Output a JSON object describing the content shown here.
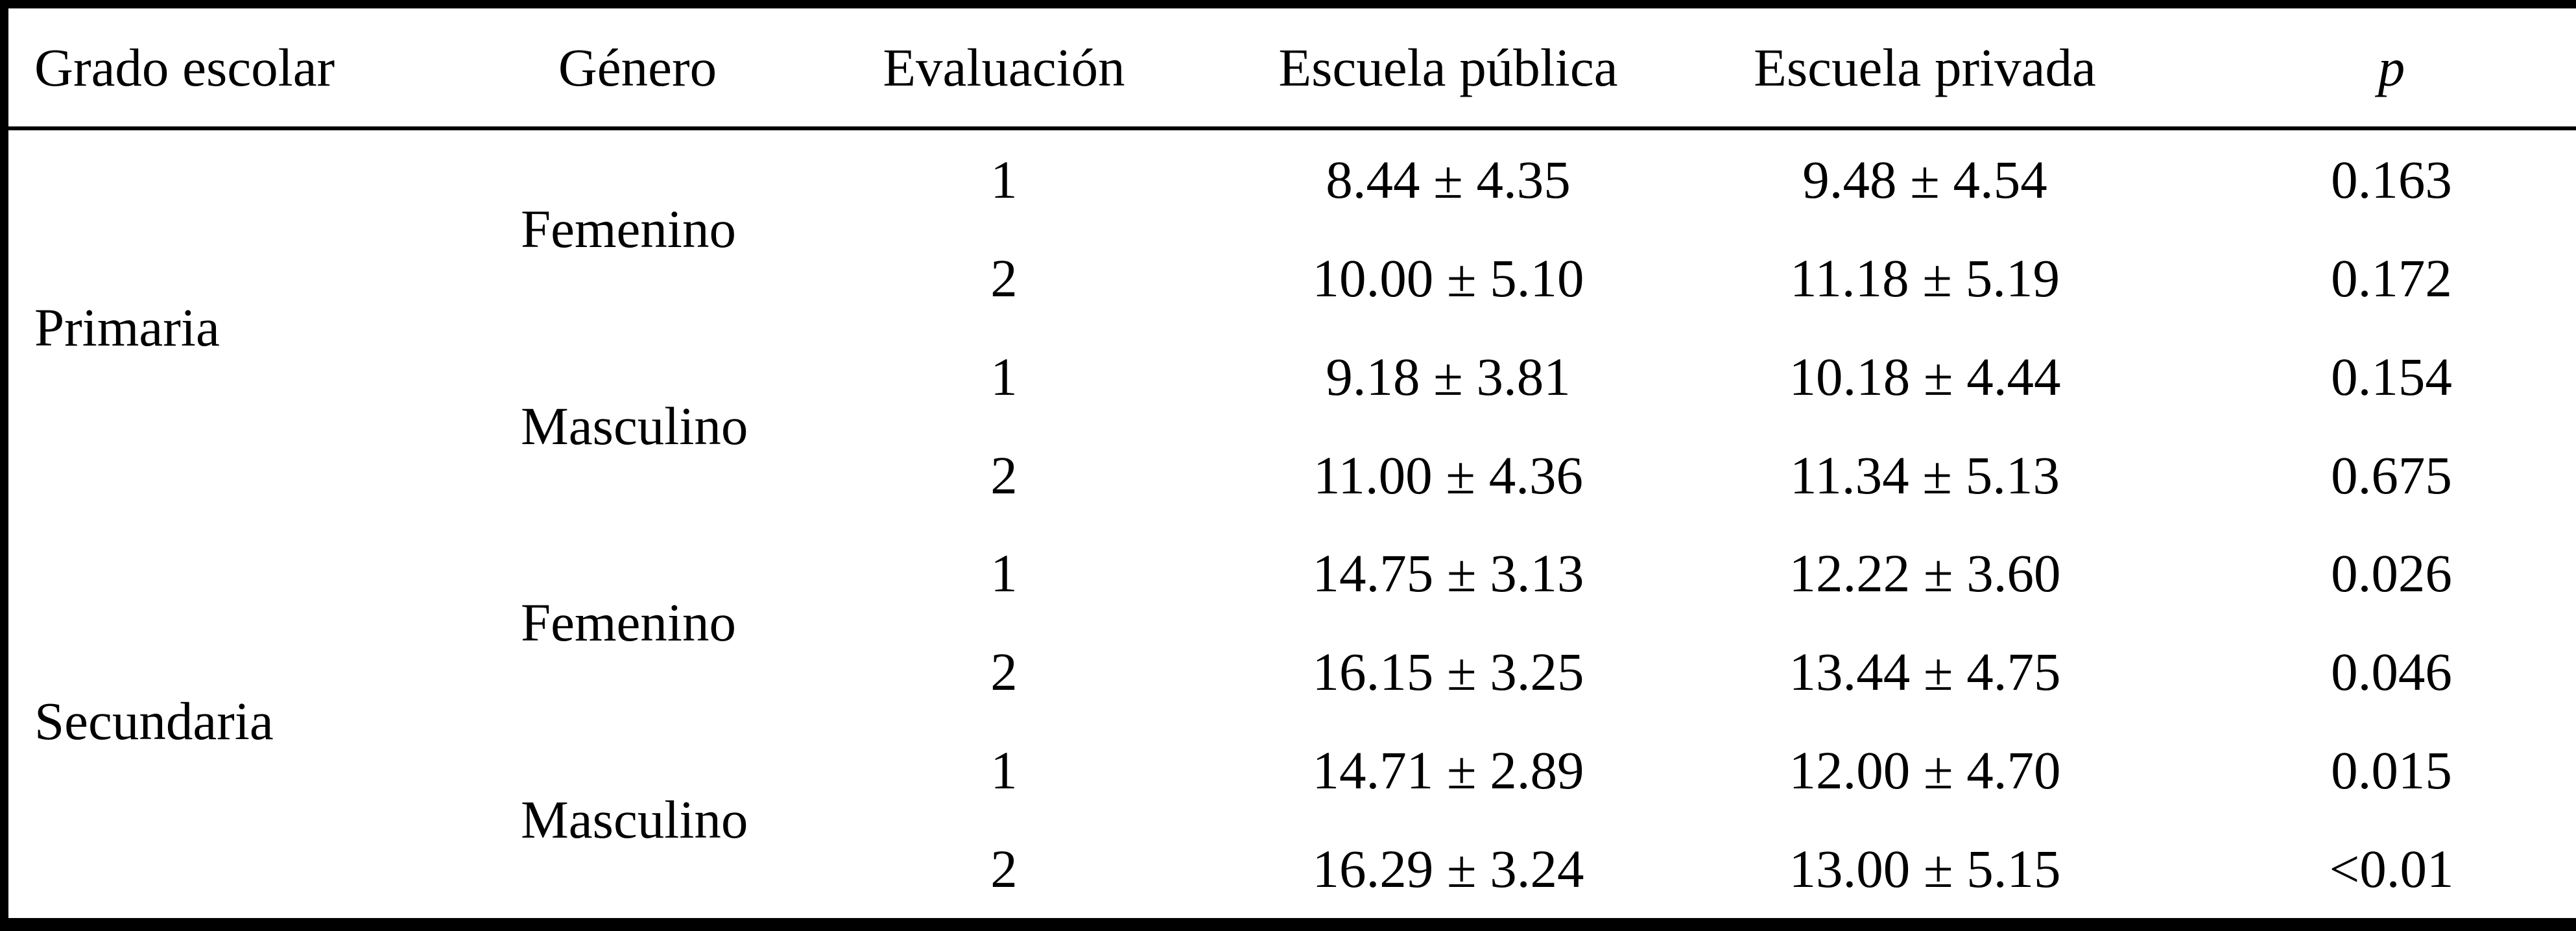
{
  "table": {
    "columns": {
      "grade": "Grado escolar",
      "gender": "Género",
      "evaluation": "Evaluación",
      "public_school": "Escuela pública",
      "private_school": "Escuela privada",
      "p": "p"
    },
    "groups": [
      {
        "grade": "Primaria",
        "genders": [
          {
            "gender": "Femenino",
            "rows": [
              {
                "evaluacion": "1",
                "publica": "8.44 ± 4.35",
                "privada": "9.48 ± 4.54",
                "p": "0.163"
              },
              {
                "evaluacion": "2",
                "publica": "10.00 ± 5.10",
                "privada": "11.18 ± 5.19",
                "p": "0.172"
              }
            ]
          },
          {
            "gender": "Masculino",
            "rows": [
              {
                "evaluacion": "1",
                "publica": "9.18 ± 3.81",
                "privada": "10.18 ± 4.44",
                "p": "0.154"
              },
              {
                "evaluacion": "2",
                "publica": "11.00 ± 4.36",
                "privada": "11.34 ± 5.13",
                "p": "0.675"
              }
            ]
          }
        ]
      },
      {
        "grade": "Secundaria",
        "genders": [
          {
            "gender": "Femenino",
            "rows": [
              {
                "evaluacion": "1",
                "publica": "14.75 ± 3.13",
                "privada": "12.22 ± 3.60",
                "p": "0.026"
              },
              {
                "evaluacion": "2",
                "publica": "16.15 ± 3.25",
                "privada": "13.44 ± 4.75",
                "p": "0.046"
              }
            ]
          },
          {
            "gender": "Masculino",
            "rows": [
              {
                "evaluacion": "1",
                "publica": "14.71 ± 2.89",
                "privada": "12.00 ± 4.70",
                "p": "0.015"
              },
              {
                "evaluacion": "2",
                "publica": "16.29 ± 3.24",
                "privada": "13.00 ± 5.15",
                "p": "<0.01"
              }
            ]
          }
        ]
      }
    ]
  }
}
